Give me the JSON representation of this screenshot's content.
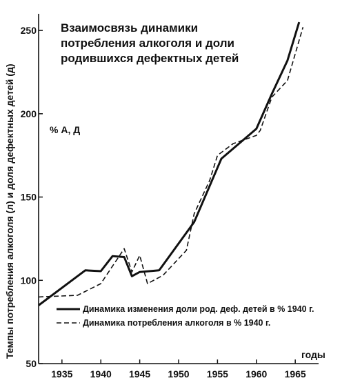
{
  "chart_data": {
    "type": "line",
    "title": [
      "Взаимосвязь динамики",
      "потребления алкоголя и доли",
      "родившихся дефектных детей"
    ],
    "ylabel": "Темпы потребления алкоголя (л) и доля дефектных детей (д)",
    "xlabel": "годы",
    "unit_label": "% А, Д",
    "xlim": [
      1932,
      1968
    ],
    "ylim": [
      50,
      260
    ],
    "x_ticks": [
      1935,
      1940,
      1945,
      1950,
      1955,
      1960,
      1965
    ],
    "y_ticks": [
      50,
      100,
      150,
      200,
      250
    ],
    "series": [
      {
        "name": "Динамика изменения доли род. деф. детей в % 1940 г.",
        "style": "solid",
        "color": "#111111",
        "x": [
          1932,
          1938,
          1940,
          1941.5,
          1943,
          1944,
          1945,
          1947.5,
          1952,
          1955.5,
          1960,
          1962,
          1964,
          1965.5
        ],
        "y": [
          85,
          106,
          105.5,
          114.5,
          114,
          102.5,
          105,
          106,
          135,
          173,
          191,
          212,
          232,
          255
        ]
      },
      {
        "name": "Динамика потребления алкоголя в % 1940 г.",
        "style": "dashed",
        "color": "#111111",
        "x": [
          1932,
          1937,
          1940,
          1943,
          1944,
          1945,
          1946,
          1948,
          1951,
          1952,
          1954,
          1955,
          1957,
          1960,
          1960.5,
          1962,
          1964,
          1966
        ],
        "y": [
          90,
          91,
          98,
          119,
          105,
          115,
          98,
          103,
          118,
          140,
          160,
          175,
          182,
          187,
          190,
          210,
          220,
          252
        ]
      }
    ]
  }
}
